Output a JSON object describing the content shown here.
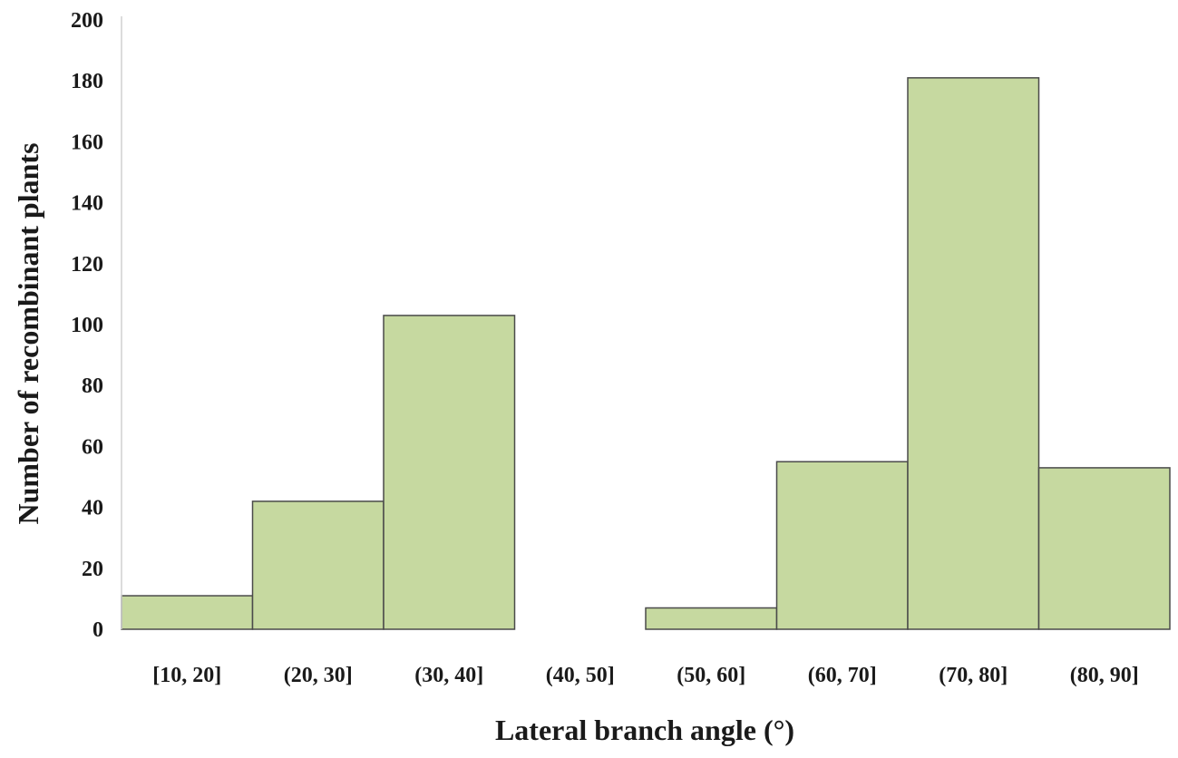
{
  "chart_data": {
    "type": "bar",
    "categories": [
      "[10, 20]",
      "(20, 30]",
      "(30, 40]",
      "(40, 50]",
      "(50, 60]",
      "(60, 70]",
      "(70, 80]",
      "(80, 90]"
    ],
    "values": [
      11,
      42,
      103,
      0,
      7,
      55,
      181,
      53
    ],
    "title": "",
    "xlabel": "Lateral branch angle (°)",
    "ylabel": "Number of recombinant plants",
    "ylim": [
      0,
      200
    ],
    "yticks": [
      0,
      20,
      40,
      60,
      80,
      100,
      120,
      140,
      160,
      180,
      200
    ],
    "grid": false,
    "legend": "none",
    "bar_color": "#c6d9a0",
    "bar_edge_color": "#4a4a4a"
  }
}
